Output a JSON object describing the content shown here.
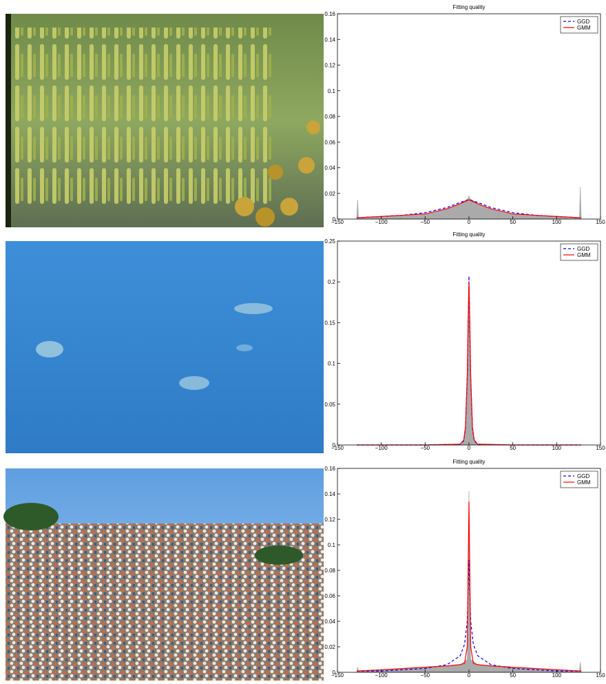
{
  "chart_data": [
    {
      "type": "line",
      "title": "Fitting quality",
      "x": [
        -128,
        -100,
        -75,
        -50,
        -25,
        -10,
        0,
        10,
        25,
        50,
        75,
        100,
        128
      ],
      "series": [
        {
          "name": "GGD",
          "color": "#0000ff",
          "dash": true,
          "values": [
            0.001,
            0.002,
            0.003,
            0.005,
            0.009,
            0.013,
            0.015,
            0.013,
            0.009,
            0.005,
            0.003,
            0.002,
            0.001
          ]
        },
        {
          "name": "GMM",
          "color": "#ff0000",
          "dash": false,
          "values": [
            0.001,
            0.002,
            0.003,
            0.004,
            0.008,
            0.012,
            0.015,
            0.012,
            0.008,
            0.004,
            0.003,
            0.002,
            0.001
          ]
        }
      ],
      "histogram": {
        "color": "#aaaaaa",
        "x": [
          -128,
          -127,
          -126,
          -100,
          -75,
          -50,
          -25,
          -10,
          -1,
          0,
          1,
          10,
          25,
          50,
          75,
          100,
          126,
          127,
          128
        ],
        "values": [
          0,
          0.015,
          0.001,
          0.002,
          0.003,
          0.004,
          0.008,
          0.012,
          0.016,
          0.018,
          0.016,
          0.012,
          0.008,
          0.004,
          0.003,
          0.002,
          0.001,
          0.025,
          0
        ]
      },
      "xlim": [
        -150,
        150
      ],
      "ylim": [
        0,
        0.16
      ],
      "xticks": [
        {
          "value": -150,
          "label": "−150"
        },
        {
          "value": -100,
          "label": "−100"
        },
        {
          "value": -50,
          "label": "−50"
        },
        0,
        50,
        100,
        150
      ],
      "yticks": [
        0,
        0.02,
        0.04,
        0.06,
        0.08,
        0.1,
        0.12,
        0.14,
        0.16
      ],
      "legend": "upper-right"
    },
    {
      "type": "line",
      "title": "Fitting quality",
      "x": [
        -128,
        -50,
        -10,
        -6,
        -4,
        -2,
        -1,
        0,
        1,
        2,
        4,
        6,
        10,
        50,
        128
      ],
      "series": [
        {
          "name": "GGD",
          "color": "#0000ff",
          "dash": true,
          "values": [
            0,
            0,
            0.001,
            0.005,
            0.02,
            0.08,
            0.14,
            0.207,
            0.14,
            0.08,
            0.02,
            0.005,
            0.001,
            0,
            0
          ]
        },
        {
          "name": "GMM",
          "color": "#ff0000",
          "dash": false,
          "values": [
            0,
            0,
            0.001,
            0.006,
            0.022,
            0.085,
            0.15,
            0.2,
            0.15,
            0.085,
            0.022,
            0.006,
            0.001,
            0,
            0
          ]
        }
      ],
      "histogram": {
        "color": "#aaaaaa",
        "x": [
          -128,
          -50,
          -10,
          -6,
          -4,
          -2,
          -1,
          0,
          1,
          2,
          4,
          6,
          10,
          50,
          128
        ],
        "values": [
          0,
          0,
          0.001,
          0.006,
          0.022,
          0.085,
          0.15,
          0.2,
          0.15,
          0.085,
          0.022,
          0.006,
          0.001,
          0,
          0
        ]
      },
      "xlim": [
        -150,
        150
      ],
      "ylim": [
        0,
        0.25
      ],
      "xticks": [
        {
          "value": -150,
          "label": "−150"
        },
        {
          "value": -100,
          "label": "−100"
        },
        {
          "value": -50,
          "label": "−50"
        },
        0,
        50,
        100,
        150
      ],
      "yticks": [
        0,
        0.05,
        0.1,
        0.15,
        0.2,
        0.25
      ],
      "legend": "upper-right"
    },
    {
      "type": "line",
      "title": "Fitting quality",
      "x": [
        -128,
        -100,
        -50,
        -25,
        -10,
        -5,
        -2,
        0,
        2,
        5,
        10,
        25,
        50,
        100,
        128
      ],
      "series": [
        {
          "name": "GGD",
          "color": "#0000ff",
          "dash": true,
          "values": [
            0.001,
            0.001,
            0.003,
            0.006,
            0.013,
            0.022,
            0.04,
            0.088,
            0.04,
            0.022,
            0.013,
            0.006,
            0.003,
            0.001,
            0.001
          ]
        },
        {
          "name": "GMM",
          "color": "#ff0000",
          "dash": false,
          "values": [
            0.001,
            0.002,
            0.004,
            0.005,
            0.006,
            0.007,
            0.02,
            0.134,
            0.02,
            0.007,
            0.006,
            0.005,
            0.004,
            0.002,
            0.001
          ]
        }
      ],
      "histogram": {
        "color": "#aaaaaa",
        "x": [
          -128,
          -127,
          -126,
          -100,
          -50,
          -25,
          -10,
          -2,
          -1,
          0,
          1,
          2,
          10,
          25,
          50,
          100,
          126,
          127,
          128
        ],
        "values": [
          0,
          0.004,
          0.001,
          0.002,
          0.004,
          0.005,
          0.006,
          0.01,
          0.03,
          0.142,
          0.03,
          0.01,
          0.006,
          0.005,
          0.004,
          0.002,
          0.001,
          0.008,
          0
        ]
      },
      "xlim": [
        -150,
        150
      ],
      "ylim": [
        0,
        0.16
      ],
      "xticks": [
        {
          "value": -150,
          "label": "−150"
        },
        {
          "value": -100,
          "label": "−100"
        },
        {
          "value": -50,
          "label": "−50"
        },
        0,
        50,
        100,
        150
      ],
      "yticks": [
        0,
        0.02,
        0.04,
        0.06,
        0.08,
        0.1,
        0.12,
        0.14,
        0.16
      ],
      "legend": "upper-right"
    }
  ]
}
